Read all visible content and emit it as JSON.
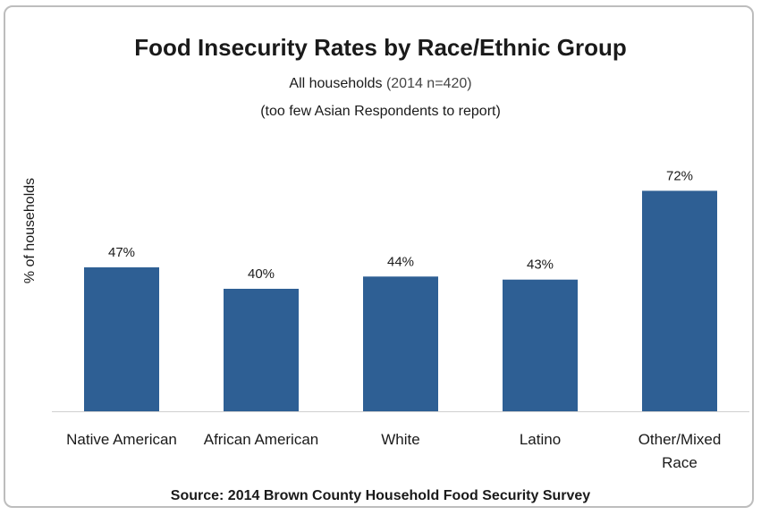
{
  "chart_data": {
    "type": "bar",
    "title": "Food Insecurity Rates by Race/Ethnic Group",
    "subtitle_main": "All households",
    "subtitle_note": "(2014 n=420)",
    "subtitle_line2": "(too few Asian Respondents to report)",
    "ylabel": "% of households",
    "xlabel": "",
    "categories": [
      [
        "Native American"
      ],
      [
        "African American"
      ],
      [
        "White"
      ],
      [
        "Latino"
      ],
      [
        "Other/Mixed",
        "Race"
      ]
    ],
    "values": [
      47,
      40,
      44,
      43,
      72
    ],
    "data_labels": [
      "47%",
      "40%",
      "44%",
      "43%",
      "72%"
    ],
    "ylim": [
      0,
      80
    ],
    "grid": false,
    "bar_color": "#2e5f94",
    "source": "Source:  2014 Brown County Household Food Security Survey"
  }
}
